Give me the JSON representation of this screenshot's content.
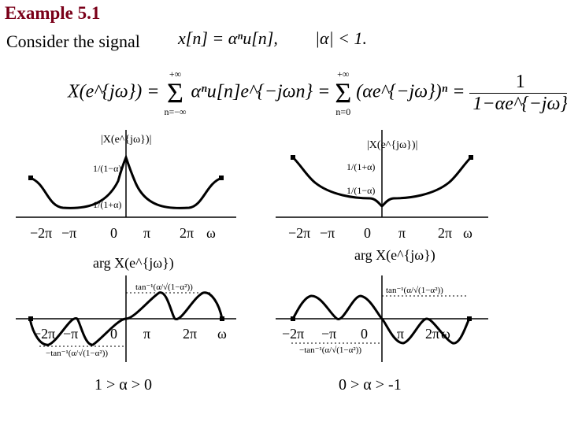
{
  "title": "Example 5.1",
  "intro": "Consider the signal",
  "signal": "x[n] = αⁿu[n],",
  "condition": "|α| < 1.",
  "equation": {
    "lhs": "X(e^{jω}) =",
    "sum1_top": "+∞",
    "sum1_bottom": "n=−∞",
    "term1": "αⁿu[n]e^{−jωn} =",
    "sum2_top": "+∞",
    "sum2_bottom": "n=0",
    "term2": "(αe^{−jω})ⁿ =",
    "frac_num": "1",
    "frac_den": "1−αe^{−jω}"
  },
  "panels": {
    "mag_left_label": "|X(e^{jω})|",
    "mag_left_peak": "1/(1−α)",
    "mag_left_min": "1/(1+α)",
    "mag_right_label": "|X(e^{jω})|",
    "mag_right_peak": "1/(1+α)",
    "mag_right_min": "1/(1−α)",
    "phase_left_label": "arg X(e^{jω})",
    "phase_right_label": "arg X(e^{jω})",
    "phase_pos": "tan⁻¹(α/√(1−α²))",
    "phase_neg": "−tan⁻¹(α/√(1−α²))",
    "ticks": [
      "−2π",
      "−π",
      "0",
      "π",
      "2π",
      "ω"
    ]
  },
  "captions": {
    "left": "1 > α > 0",
    "right": "0 > α > -1"
  },
  "colors": {
    "title": "#7a0019",
    "ink": "#000000"
  }
}
